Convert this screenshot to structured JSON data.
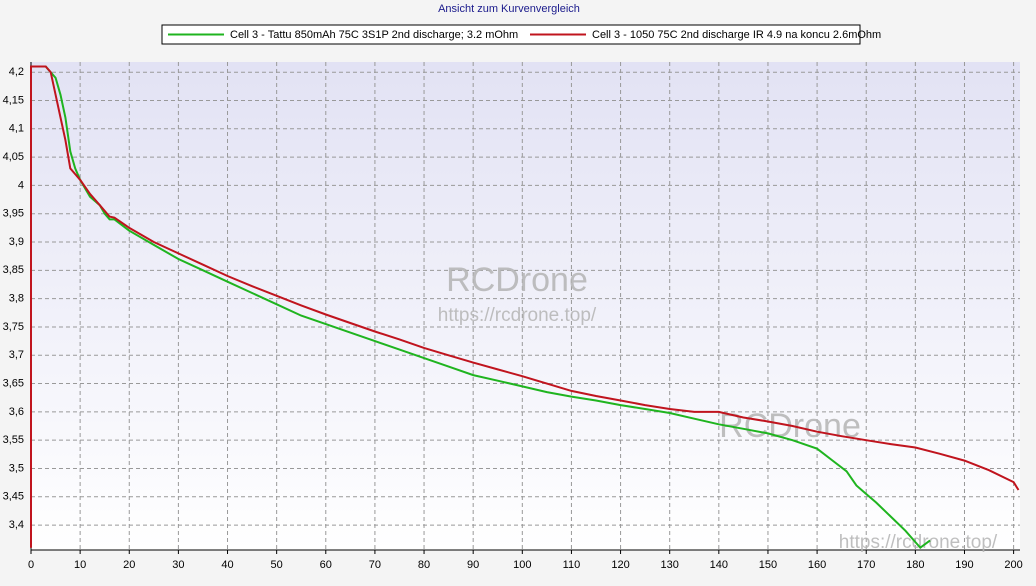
{
  "chart_data": {
    "type": "line",
    "title": "Ansicht zum Kurvenvergleich",
    "xlim": [
      0,
      201.3
    ],
    "ylim": [
      3.356,
      4.218
    ],
    "xticks": [
      0,
      10,
      20,
      30,
      40,
      50,
      60,
      70,
      80,
      90,
      100,
      110,
      120,
      130,
      140,
      150,
      160,
      170,
      180,
      190,
      200
    ],
    "yticks": [
      {
        "value": 3.4,
        "label": "3,4"
      },
      {
        "value": 3.45,
        "label": "3,45"
      },
      {
        "value": 3.5,
        "label": "3,5"
      },
      {
        "value": 3.55,
        "label": "3,55"
      },
      {
        "value": 3.6,
        "label": "3,6"
      },
      {
        "value": 3.65,
        "label": "3,65"
      },
      {
        "value": 3.7,
        "label": "3,7"
      },
      {
        "value": 3.75,
        "label": "3,75"
      },
      {
        "value": 3.8,
        "label": "3,8"
      },
      {
        "value": 3.85,
        "label": "3,85"
      },
      {
        "value": 3.9,
        "label": "3,9"
      },
      {
        "value": 3.95,
        "label": "3,95"
      },
      4,
      {
        "value": 4.05,
        "label": "4,05"
      },
      {
        "value": 4.1,
        "label": "4,1"
      },
      {
        "value": 4.15,
        "label": "4,15"
      },
      {
        "value": 4.2,
        "label": "4,2"
      }
    ],
    "grid": true,
    "series": [
      {
        "name": "Cell 3 - Tattu 850mAh 75C 3S1P 2nd discharge; 3.2 mOhm",
        "color": "#1fb41f",
        "x": [
          0,
          1,
          3,
          5,
          6,
          7,
          8,
          9,
          10,
          12,
          14,
          15,
          16,
          17,
          20,
          25,
          30,
          35,
          40,
          45,
          50,
          55,
          60,
          65,
          70,
          75,
          80,
          85,
          90,
          95,
          100,
          105,
          110,
          115,
          120,
          125,
          130,
          135,
          140,
          145,
          150,
          155,
          160,
          163,
          166,
          168,
          170,
          172,
          175,
          178,
          180,
          181,
          183
        ],
        "values": [
          4.21,
          4.21,
          4.21,
          4.19,
          4.16,
          4.12,
          4.06,
          4.03,
          4.01,
          3.98,
          3.965,
          3.95,
          3.94,
          3.94,
          3.92,
          3.895,
          3.87,
          3.85,
          3.83,
          3.81,
          3.79,
          3.77,
          3.755,
          3.74,
          3.725,
          3.71,
          3.695,
          3.68,
          3.665,
          3.655,
          3.645,
          3.635,
          3.627,
          3.62,
          3.612,
          3.605,
          3.598,
          3.588,
          3.578,
          3.57,
          3.562,
          3.55,
          3.535,
          3.515,
          3.495,
          3.47,
          3.455,
          3.44,
          3.415,
          3.39,
          3.37,
          3.36,
          3.373
        ]
      },
      {
        "name": "Cell 3 - 1050 75C 2nd discharge IR 4.9 na koncu 2.6mOhm",
        "color": "#c0141e",
        "x": [
          0,
          0,
          3,
          4,
          5,
          6,
          7,
          8,
          9,
          10,
          12,
          14,
          16,
          17,
          20,
          25,
          30,
          35,
          40,
          45,
          50,
          55,
          60,
          65,
          70,
          75,
          80,
          85,
          90,
          95,
          100,
          105,
          110,
          115,
          120,
          125,
          130,
          135,
          140,
          145,
          150,
          155,
          160,
          165,
          170,
          175,
          180,
          185,
          190,
          195,
          200,
          201
        ],
        "values": [
          3.36,
          4.21,
          4.21,
          4.2,
          4.16,
          4.12,
          4.08,
          4.03,
          4.02,
          4.01,
          3.985,
          3.965,
          3.945,
          3.943,
          3.925,
          3.9,
          3.88,
          3.86,
          3.84,
          3.822,
          3.805,
          3.788,
          3.772,
          3.757,
          3.742,
          3.728,
          3.713,
          3.7,
          3.687,
          3.675,
          3.663,
          3.65,
          3.637,
          3.628,
          3.62,
          3.612,
          3.605,
          3.6,
          3.6,
          3.59,
          3.583,
          3.575,
          3.565,
          3.557,
          3.55,
          3.543,
          3.537,
          3.526,
          3.514,
          3.497,
          3.476,
          3.462
        ]
      }
    ],
    "watermarks": [
      "RCDrone",
      "https://rcdrone.top/",
      "RCDrone",
      "https://rcdrone.top/"
    ]
  }
}
